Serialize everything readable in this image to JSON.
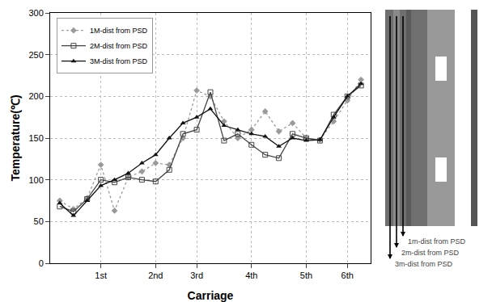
{
  "chart_data": {
    "type": "line",
    "x_label": "Carriage",
    "y_label": "Temperature(℃)",
    "categories": [
      null,
      null,
      null,
      "1st",
      null,
      null,
      null,
      "2nd",
      null,
      null,
      "3rd",
      null,
      null,
      null,
      "4th",
      null,
      null,
      null,
      "5th",
      null,
      null,
      "6th",
      null
    ],
    "series": [
      {
        "name": "1M-dist from PSD",
        "color": "#9a9a9a",
        "marker": "diamond",
        "line_style": "dot",
        "values": [
          75,
          65,
          78,
          118,
          63,
          103,
          110,
          120,
          118,
          150,
          207,
          200,
          170,
          150,
          160,
          182,
          158,
          168,
          150,
          148,
          170,
          195,
          220
        ]
      },
      {
        "name": "2M-dist from PSD",
        "color": "#444444",
        "marker": "square-open",
        "line_style": "solid",
        "values": [
          68,
          62,
          77,
          100,
          97,
          103,
          100,
          98,
          112,
          155,
          160,
          205,
          147,
          155,
          142,
          130,
          126,
          155,
          150,
          147,
          178,
          200,
          213
        ]
      },
      {
        "name": "3M-dist from PSD",
        "color": "#111111",
        "marker": "triangle-up",
        "line_style": "solid",
        "values": [
          72,
          57,
          75,
          93,
          100,
          108,
          120,
          130,
          150,
          168,
          175,
          185,
          165,
          160,
          155,
          152,
          140,
          150,
          147,
          148,
          175,
          200,
          215
        ]
      }
    ],
    "ylim": [
      0,
      300
    ],
    "yticks": [
      0,
      50,
      100,
      150,
      200,
      250,
      300
    ],
    "grid": true,
    "legend": "top-left"
  },
  "diagram": {
    "labels": [
      "1m-dist from PSD",
      "2m-dist from PSD",
      "3m-dist from PSD"
    ]
  }
}
